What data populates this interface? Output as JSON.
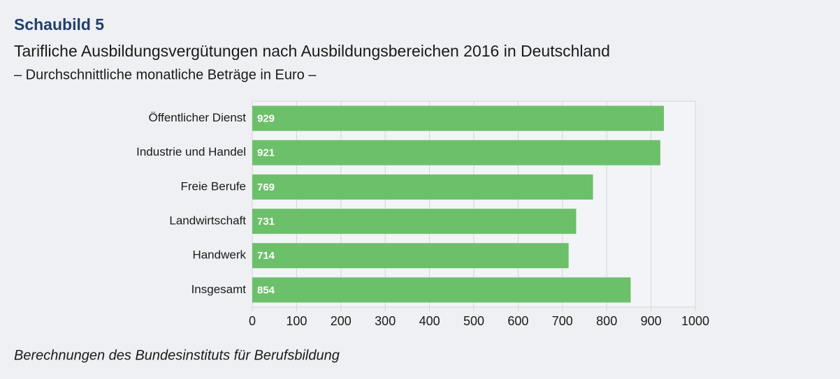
{
  "chart_data": {
    "type": "bar",
    "orientation": "horizontal",
    "label": "Schaubild 5",
    "title": "Tarifliche Ausbildungsvergütungen nach Ausbildungsbereichen 2016 in Deutschland",
    "subtitle": "– Durchschnittliche monatliche Beträge in Euro –",
    "source": "Berechnungen des Bundesinstituts für Berufsbildung",
    "categories": [
      "Öffentlicher Dienst",
      "Industrie und Handel",
      "Freie Berufe",
      "Landwirtschaft",
      "Handwerk",
      "Insgesamt"
    ],
    "values": [
      929,
      921,
      769,
      731,
      714,
      854
    ],
    "color": "#6cc06a",
    "xlim": [
      0,
      1000
    ],
    "xticks": [
      0,
      100,
      200,
      300,
      400,
      500,
      600,
      700,
      800,
      900,
      1000
    ],
    "grid": true
  }
}
